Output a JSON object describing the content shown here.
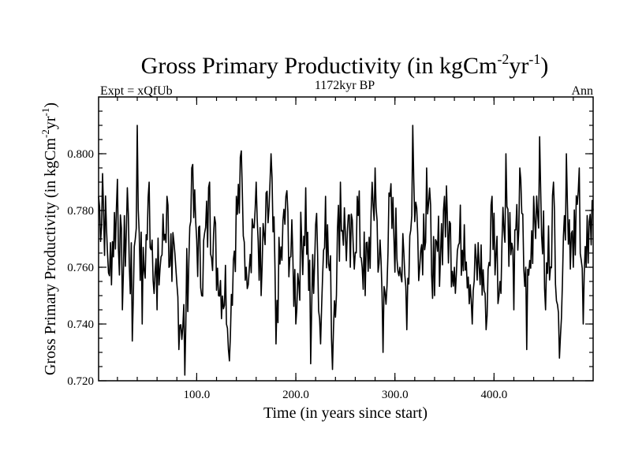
{
  "chart_data": {
    "type": "line",
    "title": "Gross Primary Productivity (in kgCm",
    "title_sup1": "-2",
    "title_mid": "yr",
    "title_sup2": "-1",
    "title_end": ")",
    "subtitle_left": "Expt = xQfUb",
    "subtitle_center": "1172kyr BP",
    "subtitle_right": "Ann",
    "xlabel": "Time (in years since start)",
    "ylabel": "Gross Primary Productivity (in kgCm",
    "ylabel_sup1": "-2",
    "ylabel_mid": "yr",
    "ylabel_sup2": "-1",
    "ylabel_end": ")",
    "xlim": [
      1,
      500
    ],
    "ylim": [
      0.72,
      0.82
    ],
    "xticks": [
      100,
      200,
      300,
      400
    ],
    "xtick_labels": [
      "100.0",
      "200.0",
      "300.0",
      "400.0"
    ],
    "yticks": [
      0.72,
      0.74,
      0.76,
      0.78,
      0.8
    ],
    "ytick_labels": [
      "0.720",
      "0.740",
      "0.760",
      "0.780",
      "0.800"
    ],
    "anchors": [
      [
        1,
        0.785
      ],
      [
        5,
        0.793
      ],
      [
        12,
        0.757
      ],
      [
        20,
        0.791
      ],
      [
        25,
        0.745
      ],
      [
        30,
        0.788
      ],
      [
        35,
        0.734
      ],
      [
        40,
        0.81
      ],
      [
        45,
        0.74
      ],
      [
        52,
        0.79
      ],
      [
        60,
        0.745
      ],
      [
        70,
        0.785
      ],
      [
        75,
        0.755
      ],
      [
        82,
        0.731
      ],
      [
        88,
        0.722
      ],
      [
        95,
        0.795
      ],
      [
        105,
        0.75
      ],
      [
        113,
        0.79
      ],
      [
        122,
        0.75
      ],
      [
        130,
        0.74
      ],
      [
        133,
        0.727
      ],
      [
        140,
        0.785
      ],
      [
        145,
        0.801
      ],
      [
        150,
        0.76
      ],
      [
        160,
        0.79
      ],
      [
        165,
        0.75
      ],
      [
        175,
        0.8
      ],
      [
        180,
        0.733
      ],
      [
        190,
        0.785
      ],
      [
        200,
        0.74
      ],
      [
        210,
        0.788
      ],
      [
        215,
        0.726
      ],
      [
        220,
        0.775
      ],
      [
        225,
        0.733
      ],
      [
        230,
        0.785
      ],
      [
        237,
        0.724
      ],
      [
        245,
        0.79
      ],
      [
        255,
        0.76
      ],
      [
        262,
        0.785
      ],
      [
        270,
        0.75
      ],
      [
        280,
        0.795
      ],
      [
        288,
        0.73
      ],
      [
        295,
        0.785
      ],
      [
        305,
        0.76
      ],
      [
        312,
        0.738
      ],
      [
        318,
        0.81
      ],
      [
        325,
        0.76
      ],
      [
        332,
        0.795
      ],
      [
        340,
        0.75
      ],
      [
        350,
        0.785
      ],
      [
        360,
        0.76
      ],
      [
        370,
        0.775
      ],
      [
        378,
        0.74
      ],
      [
        385,
        0.76
      ],
      [
        392,
        0.738
      ],
      [
        398,
        0.785
      ],
      [
        405,
        0.75
      ],
      [
        412,
        0.8
      ],
      [
        420,
        0.745
      ],
      [
        426,
        0.795
      ],
      [
        433,
        0.731
      ],
      [
        440,
        0.785
      ],
      [
        446,
        0.806
      ],
      [
        452,
        0.745
      ],
      [
        460,
        0.79
      ],
      [
        466,
        0.728
      ],
      [
        473,
        0.8
      ],
      [
        480,
        0.76
      ],
      [
        486,
        0.795
      ],
      [
        490,
        0.74
      ],
      [
        493,
        0.76
      ],
      [
        496,
        0.776
      ],
      [
        500,
        0.78
      ]
    ]
  }
}
